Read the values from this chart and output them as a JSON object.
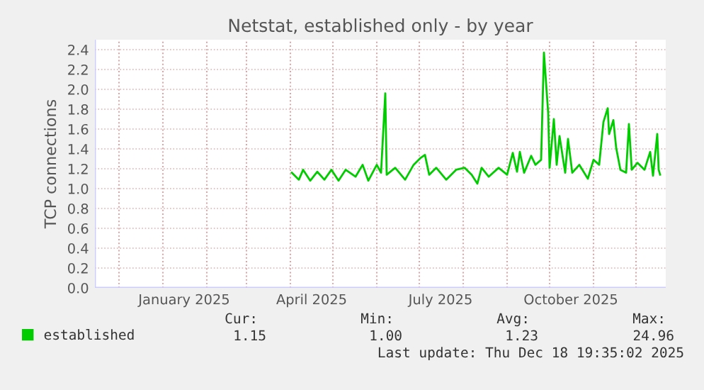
{
  "chart_data": {
    "type": "line",
    "title": "Netstat, established only - by year",
    "ylabel": "TCP connections",
    "x": [
      "2025-04-02",
      "2025-04-07",
      "2025-04-10",
      "2025-04-15",
      "2025-04-20",
      "2025-04-25",
      "2025-04-30",
      "2025-05-05",
      "2025-05-10",
      "2025-05-17",
      "2025-05-22",
      "2025-05-26",
      "2025-06-01",
      "2025-06-04",
      "2025-06-07",
      "2025-06-08",
      "2025-06-14",
      "2025-06-21",
      "2025-06-27",
      "2025-07-02",
      "2025-07-05",
      "2025-07-08",
      "2025-07-13",
      "2025-07-20",
      "2025-07-27",
      "2025-08-02",
      "2025-08-07",
      "2025-08-11",
      "2025-08-14",
      "2025-08-19",
      "2025-08-26",
      "2025-09-01",
      "2025-09-05",
      "2025-09-08",
      "2025-09-10",
      "2025-09-13",
      "2025-09-18",
      "2025-09-21",
      "2025-09-25",
      "2025-09-27",
      "2025-09-30",
      "2025-10-01",
      "2025-10-04",
      "2025-10-06",
      "2025-10-08",
      "2025-10-12",
      "2025-10-14",
      "2025-10-17",
      "2025-10-22",
      "2025-10-28",
      "2025-11-01",
      "2025-11-05",
      "2025-11-08",
      "2025-11-11",
      "2025-11-12",
      "2025-11-15",
      "2025-11-17",
      "2025-11-20",
      "2025-11-24",
      "2025-11-26",
      "2025-11-28",
      "2025-12-02",
      "2025-12-07",
      "2025-12-11",
      "2025-12-13",
      "2025-12-16",
      "2025-12-17",
      "2025-12-18"
    ],
    "series": [
      {
        "name": "established",
        "color": "#00cc00",
        "values": [
          1.16,
          1.09,
          1.19,
          1.08,
          1.17,
          1.09,
          1.19,
          1.08,
          1.19,
          1.12,
          1.24,
          1.08,
          1.24,
          1.16,
          1.96,
          1.14,
          1.21,
          1.09,
          1.24,
          1.31,
          1.34,
          1.14,
          1.21,
          1.09,
          1.19,
          1.21,
          1.14,
          1.05,
          1.21,
          1.12,
          1.21,
          1.14,
          1.36,
          1.17,
          1.37,
          1.16,
          1.33,
          1.24,
          1.29,
          2.37,
          1.76,
          1.21,
          1.7,
          1.24,
          1.53,
          1.16,
          1.5,
          1.16,
          1.24,
          1.1,
          1.29,
          1.24,
          1.67,
          1.81,
          1.55,
          1.69,
          1.41,
          1.19,
          1.16,
          1.65,
          1.19,
          1.26,
          1.19,
          1.37,
          1.13,
          1.55,
          1.19,
          1.14
        ]
      }
    ],
    "xlim": [
      "2024-11-14",
      "2025-12-22"
    ],
    "xticks": [
      {
        "value": "2024-12-01",
        "label": null
      },
      {
        "value": "2025-01-01",
        "label": null
      },
      {
        "value": "2025-01-16",
        "label": "January 2025"
      },
      {
        "value": "2025-02-01",
        "label": null
      },
      {
        "value": "2025-03-01",
        "label": null
      },
      {
        "value": "2025-04-01",
        "label": null
      },
      {
        "value": "2025-04-16",
        "label": "April 2025"
      },
      {
        "value": "2025-05-01",
        "label": null
      },
      {
        "value": "2025-06-01",
        "label": null
      },
      {
        "value": "2025-07-01",
        "label": null
      },
      {
        "value": "2025-07-16",
        "label": "July 2025"
      },
      {
        "value": "2025-08-01",
        "label": null
      },
      {
        "value": "2025-09-01",
        "label": null
      },
      {
        "value": "2025-10-01",
        "label": null
      },
      {
        "value": "2025-10-16",
        "label": "October 2025"
      },
      {
        "value": "2025-11-01",
        "label": null
      },
      {
        "value": "2025-12-01",
        "label": null
      }
    ],
    "ylim": [
      0,
      2.5
    ],
    "yticks": [
      {
        "value": 0,
        "label": "0.0"
      },
      {
        "value": 0.2,
        "label": "0.2"
      },
      {
        "value": 0.4,
        "label": "0.4"
      },
      {
        "value": 0.6,
        "label": "0.6"
      },
      {
        "value": 0.8,
        "label": "0.8"
      },
      {
        "value": 1.0,
        "label": "1.0"
      },
      {
        "value": 1.2,
        "label": "1.2"
      },
      {
        "value": 1.4,
        "label": "1.4"
      },
      {
        "value": 1.6,
        "label": "1.6"
      },
      {
        "value": 1.8,
        "label": "1.8"
      },
      {
        "value": 2.0,
        "label": "2.0"
      },
      {
        "value": 2.2,
        "label": "2.2"
      },
      {
        "value": 2.4,
        "label": "2.4"
      }
    ],
    "grid": true,
    "legend": "bottom left",
    "marker": "none",
    "line_style": "solid",
    "annotations": [
      "Cur:",
      "Min:",
      "Avg:",
      "Max:",
      "1.15",
      "1.00",
      "1.23",
      "24.96",
      "Last update: Thu Dec 18 19:35:02 2025"
    ]
  }
}
